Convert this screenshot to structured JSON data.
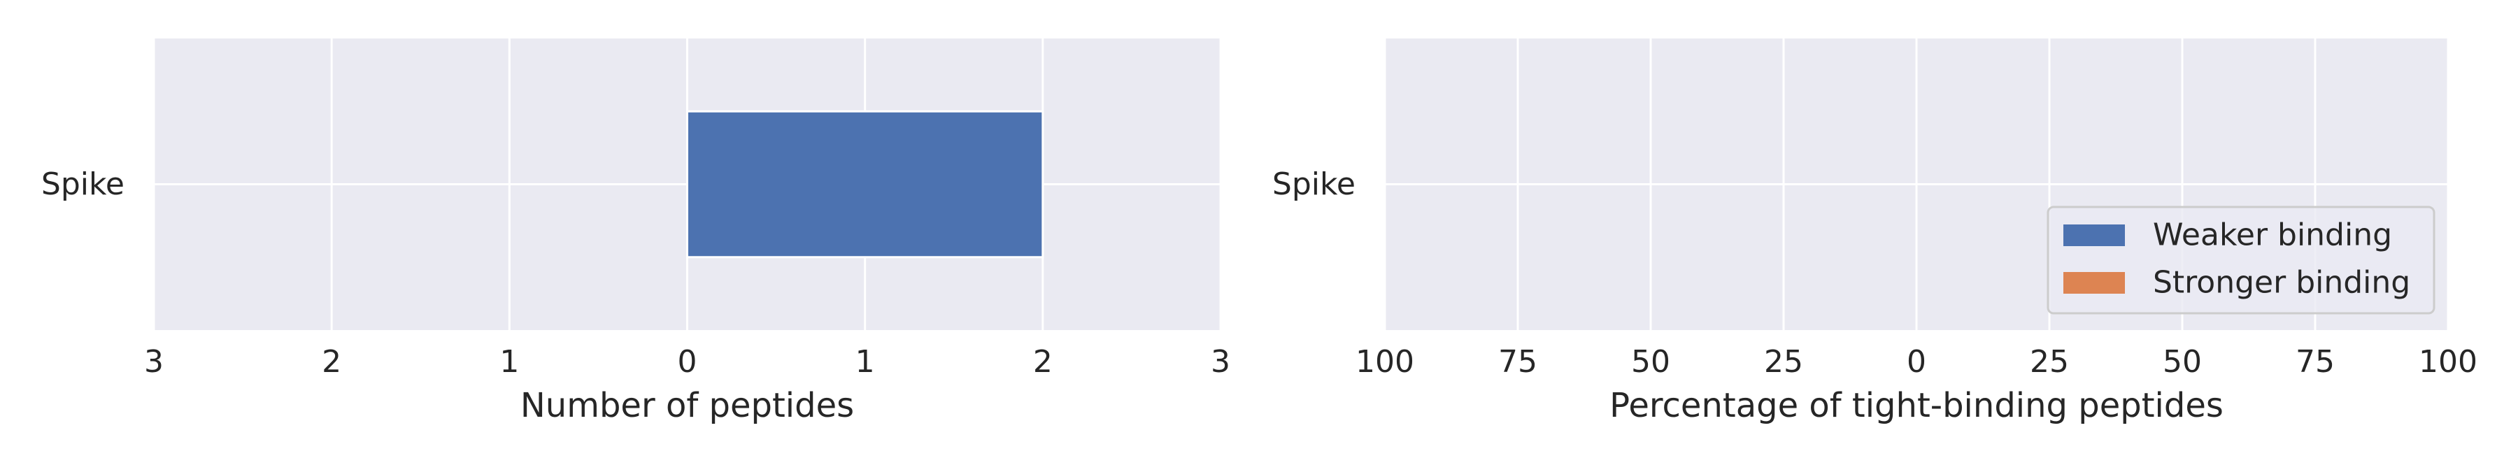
{
  "colors": {
    "panel_background": "#eaeaf2",
    "grid": "#ffffff",
    "text": "#262626",
    "weaker": "#4c72b0",
    "stronger": "#dd8452",
    "legend_border": "#cccccc"
  },
  "chart_data": [
    {
      "type": "bar",
      "orientation": "horizontal",
      "stacked": true,
      "categories": [
        "Spike"
      ],
      "xlabel": "Number of peptides",
      "ylabel": "",
      "xlim": [
        -3,
        3
      ],
      "x_ticks": [
        -3,
        -2,
        -1,
        0,
        1,
        2,
        3
      ],
      "x_tick_labels": [
        "3",
        "2",
        "1",
        "0",
        "1",
        "2",
        "3"
      ],
      "grid": true,
      "series": [
        {
          "name": "Weaker binding",
          "color": "#4c72b0",
          "values": [
            2
          ]
        },
        {
          "name": "Stronger binding",
          "color": "#dd8452",
          "values": [
            0
          ]
        }
      ]
    },
    {
      "type": "bar",
      "orientation": "horizontal",
      "stacked": true,
      "categories": [
        "Spike"
      ],
      "xlabel": "Percentage of tight-binding peptides",
      "ylabel": "",
      "xlim": [
        -100,
        100
      ],
      "x_ticks": [
        -100,
        -75,
        -50,
        -25,
        0,
        25,
        50,
        75,
        100
      ],
      "x_tick_labels": [
        "100",
        "75",
        "50",
        "25",
        "0",
        "25",
        "50",
        "75",
        "100"
      ],
      "grid": true,
      "legend": {
        "placement": "lower-right",
        "entries": [
          "Weaker binding",
          "Stronger binding"
        ]
      },
      "series": [
        {
          "name": "Weaker binding",
          "color": "#4c72b0",
          "values": [
            0
          ]
        },
        {
          "name": "Stronger binding",
          "color": "#dd8452",
          "values": [
            0
          ]
        }
      ]
    }
  ]
}
